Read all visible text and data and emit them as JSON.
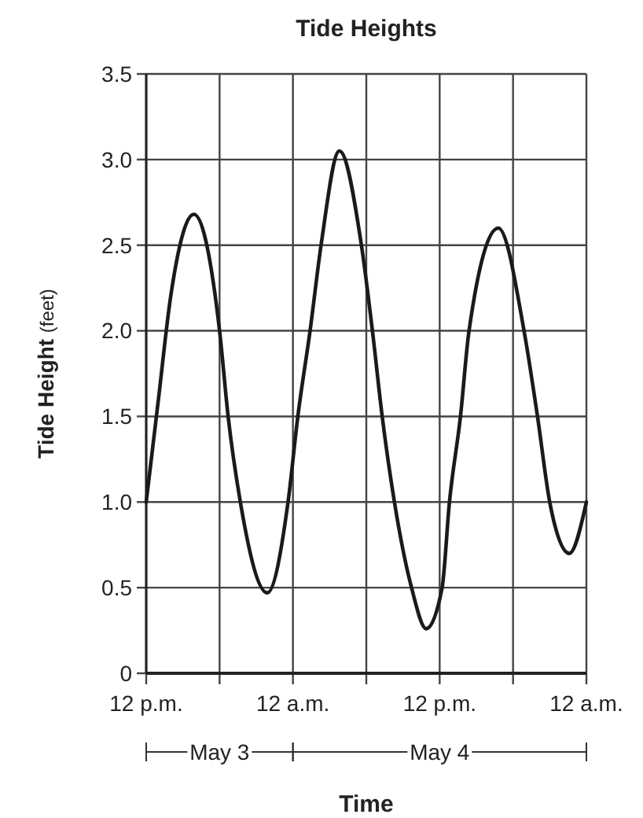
{
  "chart_data": {
    "type": "line",
    "title": "Tide Heights",
    "xlabel": "Time",
    "ylabel": "Tide Height (feet)",
    "x": [
      "--05-03T12:00",
      "--05-03T13:00",
      "--05-03T14:00",
      "--05-03T15:54",
      "--05-03T18:00",
      "--05-03T18:42",
      "--05-03T19:42",
      "--05-03T21:54",
      "--05-03T23:36",
      "--05-04T00:24",
      "--05-04T01:24",
      "--05-04T02:18",
      "--05-04T03:48",
      "--05-04T05:36",
      "--05-04T06:30",
      "--05-04T07:18",
      "--05-04T08:18",
      "--05-04T09:42",
      "--05-04T10:54",
      "--05-04T12:12",
      "--05-04T12:48",
      "--05-04T13:42",
      "--05-04T14:24",
      "--05-04T16:48",
      "--05-04T18:54",
      "--05-04T20:00",
      "--05-04T21:00",
      "--05-04T22:36",
      "--05-05T00:00"
    ],
    "series": [
      {
        "color": "#1a1a1a",
        "values": [
          1.0,
          1.6,
          2.2,
          2.68,
          2.0,
          1.5,
          1.0,
          0.47,
          1.0,
          1.5,
          2.0,
          2.5,
          3.05,
          2.5,
          2.0,
          1.5,
          1.0,
          0.5,
          0.26,
          0.5,
          1.0,
          1.5,
          2.0,
          2.6,
          2.0,
          1.5,
          1.0,
          0.7,
          1.0
        ]
      }
    ],
    "xlim": [
      "--05-03T12:00",
      "--05-05T00:00"
    ],
    "xticks": [
      {
        "value": "--05-03T12:00",
        "label": "12 p.m."
      },
      {
        "value": "--05-03T18:00",
        "label": null
      },
      {
        "value": "--05-04T00:00",
        "label": "12 a.m."
      },
      {
        "value": "--05-04T06:00",
        "label": null
      },
      {
        "value": "--05-04T12:00",
        "label": "12 p.m."
      },
      {
        "value": "--05-04T18:00",
        "label": null
      },
      {
        "value": "--05-05T00:00",
        "label": "12 a.m."
      }
    ],
    "ylim": [
      0,
      3.5
    ],
    "yticks": [
      0,
      {
        "value": 0.5,
        "label": "0.5"
      },
      {
        "value": 1,
        "label": "1.0"
      },
      {
        "value": 1.5,
        "label": "1.5"
      },
      {
        "value": 2,
        "label": "2.0"
      },
      {
        "value": 2.5,
        "label": "2.5"
      },
      {
        "value": 3,
        "label": "3.0"
      },
      {
        "value": 3.5,
        "label": "3.5"
      }
    ],
    "grid": true,
    "marker": "none",
    "line_style": "solid",
    "annotations": [
      "May 3",
      "May 4"
    ]
  }
}
